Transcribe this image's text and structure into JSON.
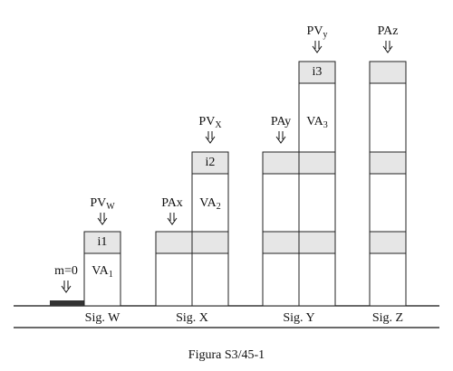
{
  "annotations": [
    {
      "text": "m=0"
    },
    {
      "text": "PV",
      "sub": "W"
    },
    {
      "text": "i1"
    },
    {
      "text": "VA",
      "sub": "1"
    },
    {
      "text": "PAx"
    },
    {
      "text": "PV",
      "sub": "X"
    },
    {
      "text": "i2"
    },
    {
      "text": "VA",
      "sub": "2"
    },
    {
      "text": "PAy"
    },
    {
      "text": "PV",
      "sub": "y"
    },
    {
      "text": "i3"
    },
    {
      "text": "VA",
      "sub": "3"
    },
    {
      "text": "PAz"
    }
  ],
  "signals": [
    "Sig. W",
    "Sig. X",
    "Sig. Y",
    "Sig. Z"
  ],
  "caption": "Figura S3/45-1"
}
